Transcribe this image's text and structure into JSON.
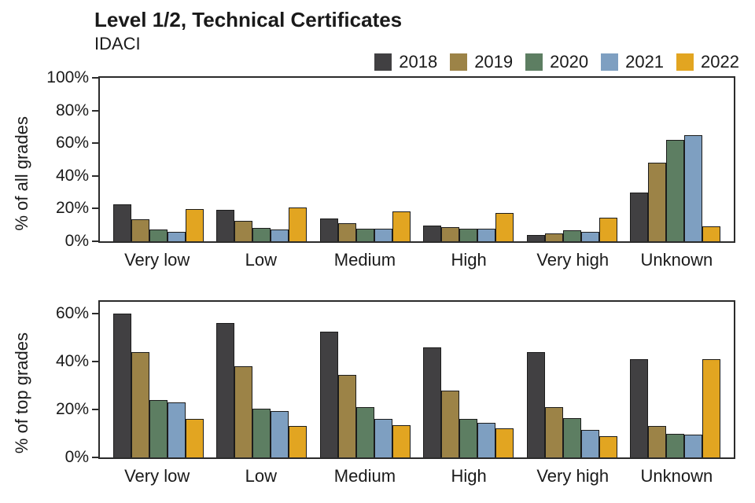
{
  "header": {
    "title": "Level 1/2, Technical Certificates",
    "subtitle": "IDACI"
  },
  "legend": {
    "entries": [
      {
        "label": "2018",
        "color": "#414042"
      },
      {
        "label": "2019",
        "color": "#9c8347"
      },
      {
        "label": "2020",
        "color": "#5d7e62"
      },
      {
        "label": "2021",
        "color": "#7e9fc1"
      },
      {
        "label": "2022",
        "color": "#e2a521"
      }
    ]
  },
  "chart_data": [
    {
      "type": "bar",
      "title": "",
      "ylabel": "% of all grades",
      "xlabel": "",
      "categories": [
        "Very low",
        "Low",
        "Medium",
        "High",
        "Very high",
        "Unknown"
      ],
      "series": [
        {
          "name": "2018",
          "values": [
            22.5,
            19,
            14,
            9.5,
            4,
            30
          ]
        },
        {
          "name": "2019",
          "values": [
            13.5,
            12.5,
            11,
            8.5,
            5,
            48
          ]
        },
        {
          "name": "2020",
          "values": [
            7,
            8,
            7.5,
            7.5,
            6.5,
            62
          ]
        },
        {
          "name": "2021",
          "values": [
            6,
            7,
            7.5,
            7.5,
            6,
            65
          ]
        },
        {
          "name": "2022",
          "values": [
            19.5,
            20.5,
            18.5,
            17.5,
            14.5,
            9
          ]
        }
      ],
      "ylim": [
        0,
        100
      ],
      "yticks": [
        0,
        20,
        40,
        60,
        80,
        100
      ],
      "grid": false,
      "legend_position": "top-right"
    },
    {
      "type": "bar",
      "title": "",
      "ylabel": "% of top grades",
      "xlabel": "",
      "categories": [
        "Very low",
        "Low",
        "Medium",
        "High",
        "Very high",
        "Unknown"
      ],
      "series": [
        {
          "name": "2018",
          "values": [
            60,
            56,
            52.5,
            46,
            44,
            41
          ]
        },
        {
          "name": "2019",
          "values": [
            44,
            38,
            34.5,
            28,
            21,
            13
          ]
        },
        {
          "name": "2020",
          "values": [
            24,
            20.5,
            21,
            16,
            16.5,
            10
          ]
        },
        {
          "name": "2021",
          "values": [
            23,
            19.5,
            16,
            14.5,
            11.5,
            9.5
          ]
        },
        {
          "name": "2022",
          "values": [
            16,
            13,
            13.5,
            12,
            9,
            41
          ]
        }
      ],
      "ylim": [
        0,
        65
      ],
      "yticks": [
        0,
        20,
        40,
        60
      ],
      "grid": false,
      "legend_position": "none"
    }
  ]
}
